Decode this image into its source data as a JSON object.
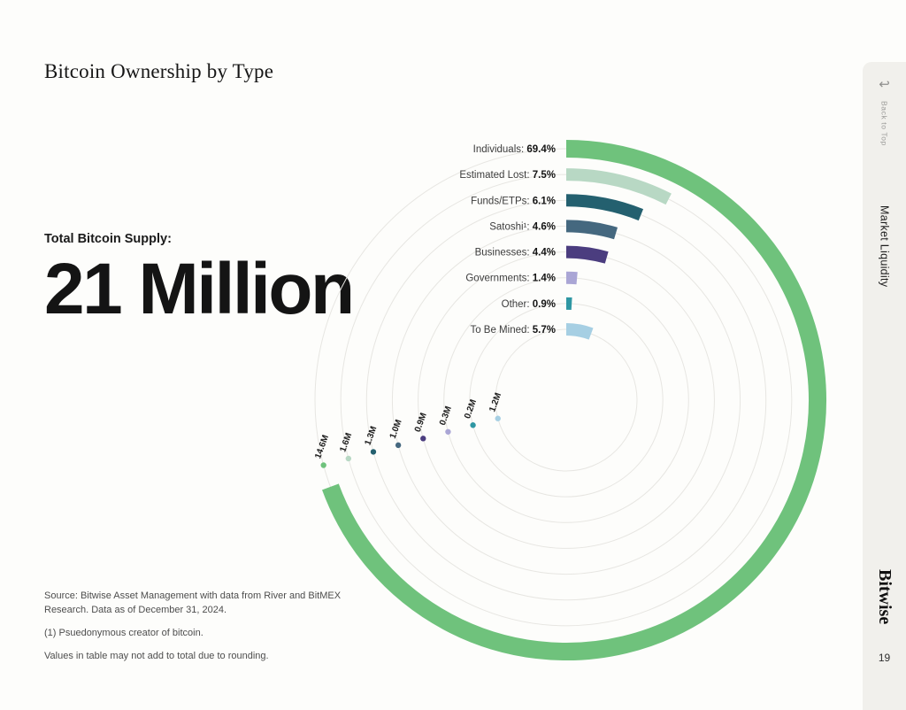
{
  "page": {
    "title": "Bitcoin Ownership by Type",
    "supply_label": "Total Bitcoin Supply:",
    "supply_value": "21 Million",
    "footnotes": {
      "source": "Source: Bitwise Asset Management with data from River and BitMEX Research. Data as of December 31, 2024.",
      "footnote1": "(1) Psuedonymous creator of bitcoin.",
      "rounding": "Values in table may not add to total due to rounding."
    },
    "page_number": "19"
  },
  "sidebar": {
    "back_icon_glyph": "↩",
    "back_to_top": "Back to Top",
    "section": "Market Liquidity",
    "brand": "Bitwise"
  },
  "chart_data": {
    "type": "bar",
    "variant": "radial-concentric-arcs",
    "title": "Bitcoin Ownership by Type",
    "total_supply": "21 Million BTC",
    "categories": [
      "Individuals",
      "Estimated Lost",
      "Funds/ETPs",
      "Satoshi¹",
      "Businesses",
      "Governments",
      "Other",
      "To Be Mined"
    ],
    "percent": [
      69.4,
      7.5,
      6.1,
      4.6,
      4.4,
      1.4,
      0.9,
      5.7
    ],
    "amount_labels": [
      "14.6M",
      "1.6M",
      "1.3M",
      "1.0M",
      "0.9M",
      "0.3M",
      "0.2M",
      "1.2M"
    ],
    "colors": [
      "#6fc27c",
      "#b8d8c4",
      "#24606f",
      "#45687f",
      "#4b3d7f",
      "#aaa6d5",
      "#2f97a3",
      "#a6cfe3"
    ],
    "grid_color": "#e7e6e2",
    "start_angle_deg": 0,
    "full_circle_percent": 100,
    "legend_position": "top-left-of-rings",
    "grid": true
  }
}
